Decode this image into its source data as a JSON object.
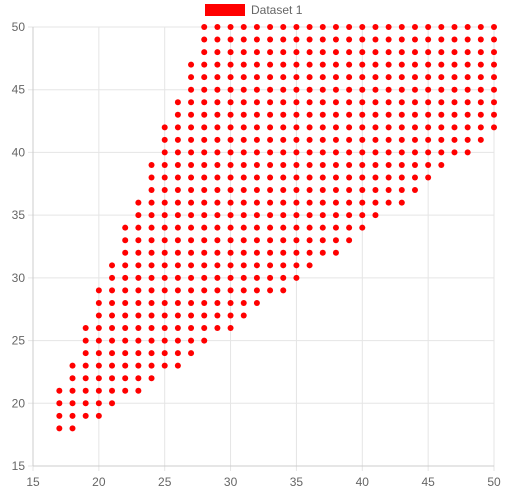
{
  "chart_data": {
    "type": "scatter",
    "title": "",
    "xlabel": "",
    "ylabel": "",
    "xlim": [
      15,
      50
    ],
    "ylim": [
      15,
      50
    ],
    "xticks": [
      15,
      20,
      25,
      30,
      35,
      40,
      45,
      50
    ],
    "yticks": [
      15,
      20,
      25,
      30,
      35,
      40,
      45,
      50
    ],
    "grid": true,
    "legend": {
      "position": "top-center"
    },
    "point_rule": "integer lattice of points (x, y) with y <= 50, y >= x - 8, and y >= 18 for x=17, 18 for x=18, then y >= x/ (approx) following lower boundary; upper-left edge per column listed in column_ranges",
    "series": [
      {
        "name": "Dataset 1",
        "color": "#ff0000",
        "column_ranges": [
          {
            "x": 17,
            "y_min": 18,
            "y_max": 21
          },
          {
            "x": 18,
            "y_min": 18,
            "y_max": 23
          },
          {
            "x": 19,
            "y_min": 19,
            "y_max": 26
          },
          {
            "x": 20,
            "y_min": 19,
            "y_max": 29
          },
          {
            "x": 21,
            "y_min": 20,
            "y_max": 31
          },
          {
            "x": 22,
            "y_min": 21,
            "y_max": 34
          },
          {
            "x": 23,
            "y_min": 21,
            "y_max": 36
          },
          {
            "x": 24,
            "y_min": 22,
            "y_max": 39
          },
          {
            "x": 25,
            "y_min": 23,
            "y_max": 42
          },
          {
            "x": 26,
            "y_min": 23,
            "y_max": 44
          },
          {
            "x": 27,
            "y_min": 24,
            "y_max": 47
          },
          {
            "x": 28,
            "y_min": 25,
            "y_max": 50
          },
          {
            "x": 29,
            "y_min": 26,
            "y_max": 50
          },
          {
            "x": 30,
            "y_min": 26,
            "y_max": 50
          },
          {
            "x": 31,
            "y_min": 27,
            "y_max": 50
          },
          {
            "x": 32,
            "y_min": 28,
            "y_max": 50
          },
          {
            "x": 33,
            "y_min": 29,
            "y_max": 50
          },
          {
            "x": 34,
            "y_min": 29,
            "y_max": 50
          },
          {
            "x": 35,
            "y_min": 30,
            "y_max": 50
          },
          {
            "x": 36,
            "y_min": 31,
            "y_max": 50
          },
          {
            "x": 37,
            "y_min": 32,
            "y_max": 50
          },
          {
            "x": 38,
            "y_min": 32,
            "y_max": 50
          },
          {
            "x": 39,
            "y_min": 33,
            "y_max": 50
          },
          {
            "x": 40,
            "y_min": 34,
            "y_max": 50
          },
          {
            "x": 41,
            "y_min": 35,
            "y_max": 50
          },
          {
            "x": 42,
            "y_min": 36,
            "y_max": 50
          },
          {
            "x": 43,
            "y_min": 36,
            "y_max": 50
          },
          {
            "x": 44,
            "y_min": 37,
            "y_max": 50
          },
          {
            "x": 45,
            "y_min": 38,
            "y_max": 50
          },
          {
            "x": 46,
            "y_min": 39,
            "y_max": 50
          },
          {
            "x": 47,
            "y_min": 40,
            "y_max": 50
          },
          {
            "x": 48,
            "y_min": 40,
            "y_max": 50
          },
          {
            "x": 49,
            "y_min": 41,
            "y_max": 50
          },
          {
            "x": 50,
            "y_min": 42,
            "y_max": 50
          }
        ]
      }
    ]
  }
}
